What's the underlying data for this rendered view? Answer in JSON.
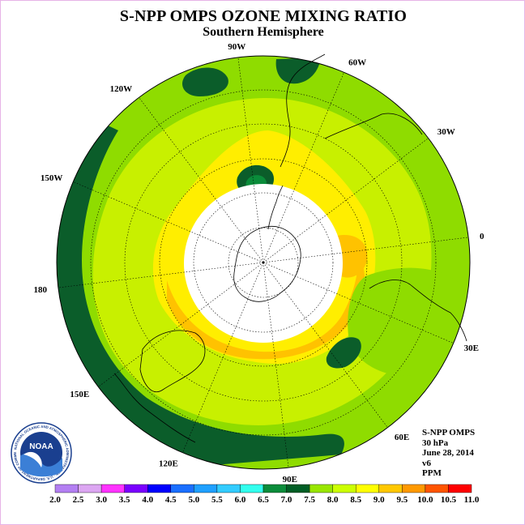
{
  "title": "S-NPP OMPS OZONE MIXING RATIO",
  "subtitle": "Southern Hemisphere",
  "logo_text": "NOAA",
  "logo_ring_text": "NATIONAL OCEANIC AND ATMOSPHERIC ADMINISTRATION · U.S. DEPARTMENT OF COMMERCE",
  "info": {
    "instrument": "S-NPP OMPS",
    "pressure": "30 hPa",
    "date": "June 28, 2014",
    "version": "v6",
    "units": "PPM"
  },
  "longitude_labels": [
    {
      "label": "90W",
      "lon": -90
    },
    {
      "label": "60W",
      "lon": -60
    },
    {
      "label": "30W",
      "lon": -30
    },
    {
      "label": "0",
      "lon": 0
    },
    {
      "label": "30E",
      "lon": 30
    },
    {
      "label": "60E",
      "lon": 60
    },
    {
      "label": "90E",
      "lon": 90
    },
    {
      "label": "120E",
      "lon": 120
    },
    {
      "label": "150E",
      "lon": 150
    },
    {
      "label": "180",
      "lon": 180
    },
    {
      "label": "150W",
      "lon": -150
    },
    {
      "label": "120W",
      "lon": -120
    }
  ],
  "colorbar": {
    "ticks": [
      "2.0",
      "2.5",
      "3.0",
      "3.5",
      "4.0",
      "4.5",
      "5.0",
      "5.5",
      "6.0",
      "6.5",
      "7.0",
      "7.5",
      "8.0",
      "8.5",
      "9.0",
      "9.5",
      "10.0",
      "10.5",
      "11.0"
    ],
    "colors": [
      "#b37ff2",
      "#dca6f2",
      "#ff33ff",
      "#7a00ff",
      "#0000ff",
      "#1a6fff",
      "#1fa0ff",
      "#33ccff",
      "#33ffee",
      "#0a8c3a",
      "#005e25",
      "#99e600",
      "#ccff00",
      "#ffff00",
      "#ffc800",
      "#ff9900",
      "#ff5500",
      "#ff0000",
      "#8c5a3c"
    ]
  },
  "palette": {
    "dark_green": "#0b5d2a",
    "mid_green": "#8fdc00",
    "lime": "#c8f000",
    "yellow": "#ffee00",
    "orange": "#ffc200",
    "no_data": "#ffffff"
  }
}
